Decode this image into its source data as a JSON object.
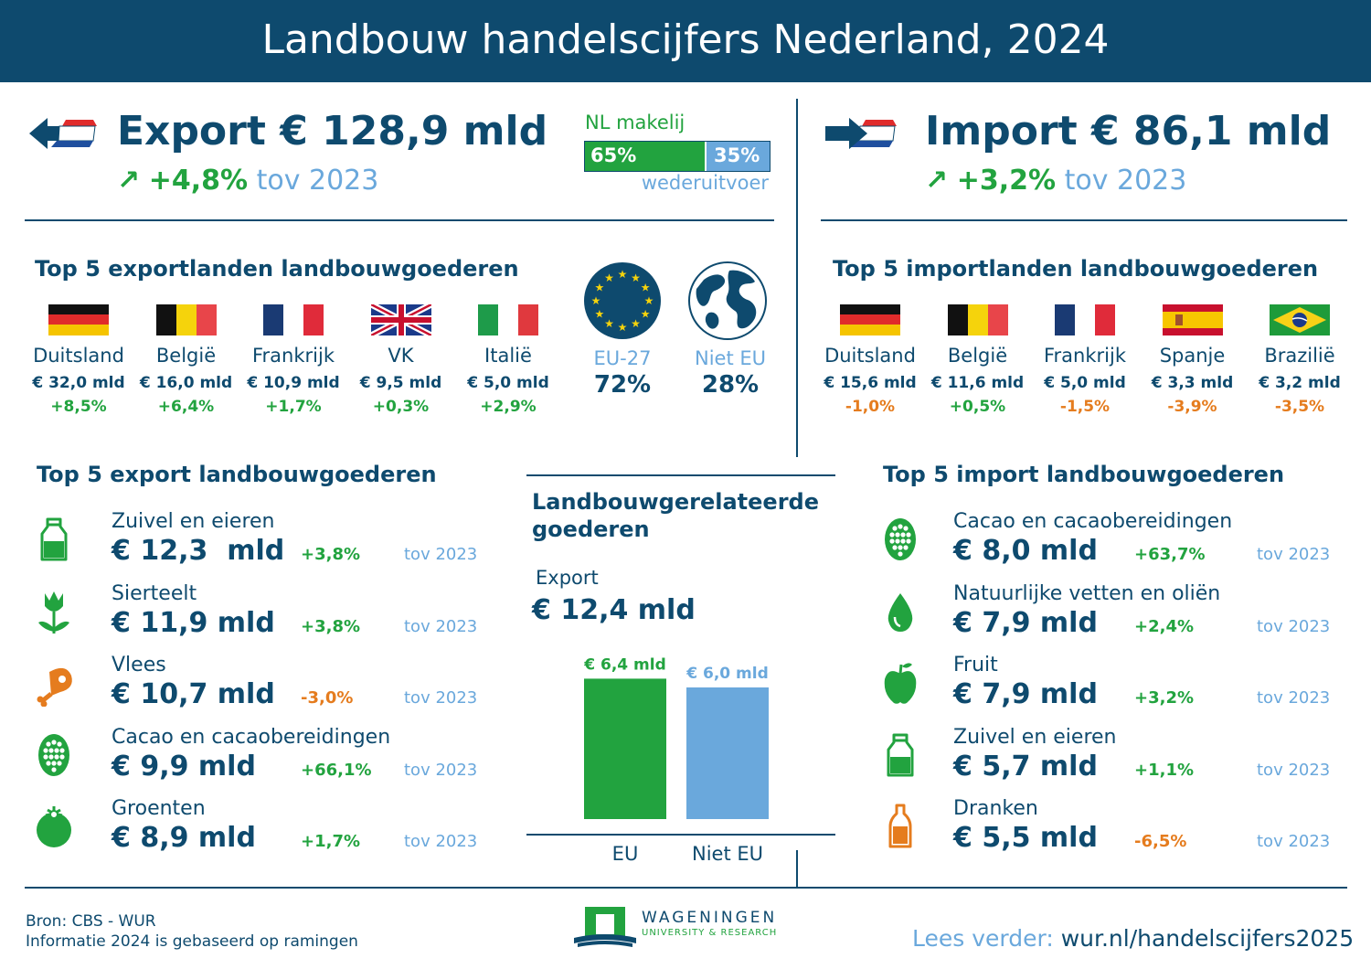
{
  "title": "Landbouw handelscijfers Nederland, 2024",
  "colors": {
    "navy": "#0e4a6e",
    "green": "#22a33f",
    "light_blue": "#6aa8dc",
    "orange": "#e57c1e"
  },
  "export": {
    "heading": "Export € 128,9 mld",
    "change": "+4,8%",
    "tov": "tov 2023",
    "nl_made_label": "NL makelij",
    "nl_made_pct": "65%",
    "reexport_pct": "35%",
    "reexport_label": "wederuitvoer",
    "nl_made_share": 0.65
  },
  "import": {
    "heading": "Import € 86,1 mld",
    "change": "+3,2%",
    "tov": "tov 2023"
  },
  "top5_export_countries": {
    "title": "Top 5 exportlanden landbouwgoederen",
    "items": [
      {
        "name": "Duitsland",
        "value": "€ 32,0 mld",
        "change": "+8,5%",
        "flag": "germany-flag",
        "trend": "up"
      },
      {
        "name": "België",
        "value": "€ 16,0 mld",
        "change": "+6,4%",
        "flag": "belgium-flag",
        "trend": "up"
      },
      {
        "name": "Frankrijk",
        "value": "€ 10,9 mld",
        "change": "+1,7%",
        "flag": "france-flag",
        "trend": "up"
      },
      {
        "name": "VK",
        "value": "€ 9,5 mld",
        "change": "+0,3%",
        "flag": "uk-flag",
        "trend": "up"
      },
      {
        "name": "Italië",
        "value": "€ 5,0 mld",
        "change": "+2,9%",
        "flag": "italy-flag",
        "trend": "up"
      }
    ]
  },
  "regions": {
    "eu_label": "EU-27",
    "eu_pct": "72%",
    "eu_icon": "eu-flag-icon",
    "non_eu_label": "Niet EU",
    "non_eu_pct": "28%",
    "non_eu_icon": "globe-icon"
  },
  "top5_import_countries": {
    "title": "Top 5 importlanden landbouwgoederen",
    "items": [
      {
        "name": "Duitsland",
        "value": "€ 15,6 mld",
        "change": "-1,0%",
        "flag": "germany-flag",
        "trend": "down"
      },
      {
        "name": "België",
        "value": "€ 11,6 mld",
        "change": "+0,5%",
        "flag": "belgium-flag",
        "trend": "up"
      },
      {
        "name": "Frankrijk",
        "value": "€ 5,0 mld",
        "change": "-1,5%",
        "flag": "france-flag",
        "trend": "down"
      },
      {
        "name": "Spanje",
        "value": "€ 3,3 mld",
        "change": "-3,9%",
        "flag": "spain-flag",
        "trend": "down"
      },
      {
        "name": "Brazilië",
        "value": "€ 3,2 mld",
        "change": "-3,5%",
        "flag": "brazil-flag",
        "trend": "down"
      }
    ]
  },
  "top5_export_goods": {
    "title": "Top 5 export landbouwgoederen",
    "items": [
      {
        "label": "Zuivel en eieren",
        "value": "€ 12,3  mld",
        "change": "+3,8%",
        "tov": "tov 2023",
        "icon": "milk-bottle-icon",
        "trend": "up"
      },
      {
        "label": "Sierteelt",
        "value": "€ 11,9 mld",
        "change": "+3,8%",
        "tov": "tov 2023",
        "icon": "tulip-icon",
        "trend": "up"
      },
      {
        "label": "Vlees",
        "value": "€ 10,7 mld",
        "change": "-3,0%",
        "tov": "tov 2023",
        "icon": "ham-leg-icon",
        "trend": "down"
      },
      {
        "label": "Cacao en cacaobereidingen",
        "value": "€ 9,9 mld",
        "change": "+66,1%",
        "tov": "tov 2023",
        "icon": "cacao-pod-icon",
        "trend": "up"
      },
      {
        "label": "Groenten",
        "value": "€ 8,9 mld",
        "change": "+1,7%",
        "tov": "tov 2023",
        "icon": "tomato-icon",
        "trend": "up"
      }
    ]
  },
  "related_goods": {
    "title_line1": "Landbouwgerelateerde",
    "title_line2": "goederen",
    "export_label": "Export",
    "export_value": "€ 12,4 mld"
  },
  "top5_import_goods": {
    "title": "Top 5 import landbouwgoederen",
    "items": [
      {
        "label": "Cacao en cacaobereidingen",
        "value": "€ 8,0 mld",
        "change": "+63,7%",
        "tov": "tov 2023",
        "icon": "cacao-pod-icon",
        "trend": "up"
      },
      {
        "label": "Natuurlijke vetten en oliën",
        "value": "€ 7,9 mld",
        "change": "+2,4%",
        "tov": "tov 2023",
        "icon": "oil-drop-icon",
        "trend": "up"
      },
      {
        "label": "Fruit",
        "value": "€ 7,9 mld",
        "change": "+3,2%",
        "tov": "tov 2023",
        "icon": "apple-icon",
        "trend": "up"
      },
      {
        "label": "Zuivel en eieren",
        "value": "€ 5,7 mld",
        "change": "+1,1%",
        "tov": "tov 2023",
        "icon": "milk-bottle-icon",
        "trend": "up"
      },
      {
        "label": "Dranken",
        "value": "€ 5,5 mld",
        "change": "-6,5%",
        "tov": "tov 2023",
        "icon": "drink-bottle-icon",
        "trend": "down"
      }
    ]
  },
  "chart_data": {
    "type": "bar",
    "categories": [
      "EU",
      "Niet EU"
    ],
    "values": [
      6.4,
      6.0
    ],
    "value_labels": [
      "€ 6,4 mld",
      "€ 6,0 mld"
    ],
    "colors": [
      "#22a33f",
      "#6aa8dc"
    ],
    "ylim": [
      0,
      7
    ],
    "title": "",
    "xlabel": "",
    "ylabel": ""
  },
  "footer": {
    "source": "Bron: CBS - WUR",
    "note": "Informatie 2024 is gebaseerd op ramingen",
    "logo_name": "WAGENINGEN",
    "logo_sub": "UNIVERSITY & RESEARCH",
    "read_more_label": "Lees verder:",
    "read_more_link": "wur.nl/handelscijfers2025"
  }
}
